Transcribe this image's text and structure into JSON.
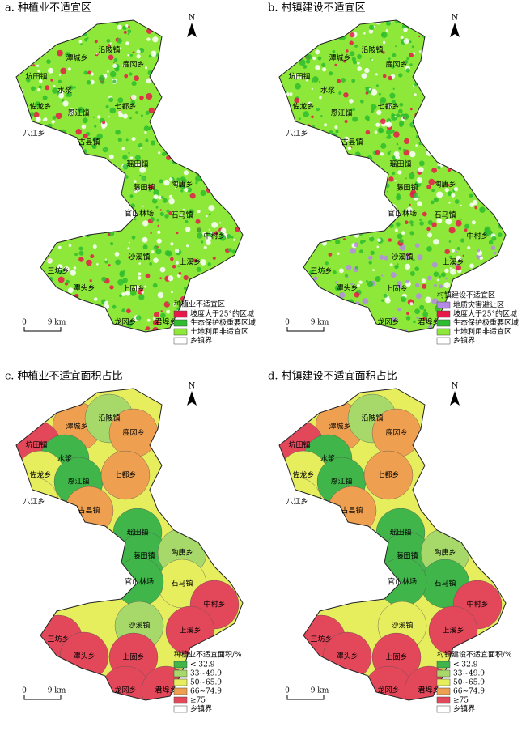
{
  "north": "N",
  "scale_bar": {
    "start": "0",
    "end": "9 km"
  },
  "towns": [
    "潭城乡",
    "沿陂镇",
    "鹿冈乡",
    "坑田镇",
    "水浆",
    "佐龙乡",
    "恩江镇",
    "七都乡",
    "八江乡",
    "古县镇",
    "瑶田镇",
    "藤田镇",
    "陶唐乡",
    "石马镇",
    "官山林场",
    "中村乡",
    "沙溪镇",
    "上溪乡",
    "三坊乡",
    "潭头乡",
    "上固乡",
    "龙冈乡",
    "君埠乡"
  ],
  "panels": [
    {
      "title": "a. 种植业不适宜区",
      "legend_title": "种植业不适宜区",
      "legend": [
        {
          "label": "坡度大于25°的区域",
          "color": "#e8194a"
        },
        {
          "label": "生态保护极重要区域",
          "color": "#2ebd2e"
        },
        {
          "label": "土地利用非适宜区",
          "color": "#8ee83a"
        },
        {
          "label": "乡镇界",
          "color": "#ffffff"
        }
      ]
    },
    {
      "title": "b. 村镇建设不适宜区",
      "legend_title": "村镇建设不适宜区",
      "legend": [
        {
          "label": "地质灾害避让区",
          "color": "#b58ae6"
        },
        {
          "label": "坡度大于25°的区域",
          "color": "#e8194a"
        },
        {
          "label": "生态保护极重要区域",
          "color": "#2ebd2e"
        },
        {
          "label": "土地利用非适宜区",
          "color": "#8ee83a"
        },
        {
          "label": "乡镇界",
          "color": "#ffffff"
        }
      ]
    },
    {
      "title": "c. 种植业不适宜面积占比",
      "legend_title": "种植业不适宜面积/%",
      "legend": [
        {
          "label": "< 32.9",
          "color": "#3fb54a"
        },
        {
          "label": "33~49.9",
          "color": "#a6d96a"
        },
        {
          "label": "50~65.9",
          "color": "#e6ee5e"
        },
        {
          "label": "66~74.9",
          "color": "#eea050"
        },
        {
          "label": "≥75",
          "color": "#e3475a"
        },
        {
          "label": "乡镇界",
          "color": "#ffffff"
        }
      ]
    },
    {
      "title": "d. 村镇建设不适宜面积占比",
      "legend_title": "村镇建设不适宜面积/%",
      "legend": [
        {
          "label": "< 32.9",
          "color": "#3fb54a"
        },
        {
          "label": "33~49.9",
          "color": "#a6d96a"
        },
        {
          "label": "50~65.9",
          "color": "#e6ee5e"
        },
        {
          "label": "66~74.9",
          "color": "#eea050"
        },
        {
          "label": "≥75",
          "color": "#e3475a"
        },
        {
          "label": "乡镇界",
          "color": "#ffffff"
        }
      ]
    }
  ]
}
